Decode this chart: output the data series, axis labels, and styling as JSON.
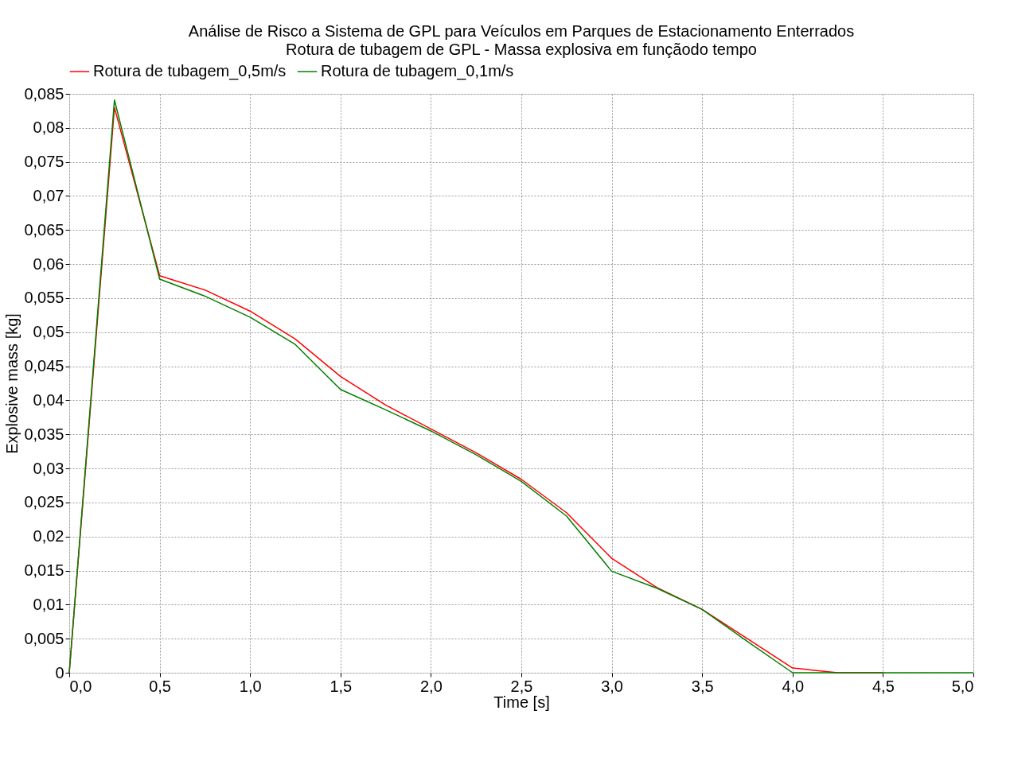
{
  "chart_data": {
    "type": "line",
    "title": "Análise de Risco a Sistema de GPL para Veículos em Parques de Estacionamento Enterrados",
    "subtitle": "Rotura de tubagem de GPL - Massa explosiva em funçãodo tempo",
    "xlabel": "Time [s]",
    "ylabel": "Explosive mass [kg]",
    "x": [
      0,
      0.25,
      0.5,
      0.75,
      1.0,
      1.25,
      1.5,
      1.75,
      2.0,
      2.25,
      2.5,
      2.75,
      3.0,
      3.25,
      3.5,
      3.75,
      4.0,
      4.25,
      4.5,
      4.75,
      5.0
    ],
    "series": [
      {
        "name": "Rotura de tubagem_0,5m/s",
        "color": "#ff0000",
        "values": [
          0,
          0.083,
          0.0583,
          0.0562,
          0.0531,
          0.049,
          0.0435,
          0.0393,
          0.0358,
          0.0323,
          0.0284,
          0.0235,
          0.0168,
          0.0125,
          0.0093,
          0.005,
          0.0007,
          0,
          0,
          null,
          null
        ]
      },
      {
        "name": "Rotura de tubagem_0,1m/s",
        "color": "#008000",
        "values": [
          0,
          0.0841,
          0.0578,
          0.0553,
          0.0522,
          0.0482,
          0.0416,
          0.0386,
          0.0355,
          0.032,
          0.0281,
          0.023,
          0.0149,
          0.0124,
          0.0093,
          0.0046,
          0,
          0,
          0,
          0,
          0
        ]
      }
    ],
    "xlim": [
      0,
      5
    ],
    "xticks": [
      {
        "value": 0,
        "label": "0,0"
      },
      {
        "value": 0.5,
        "label": "0,5"
      },
      {
        "value": 1,
        "label": "1,0"
      },
      {
        "value": 1.5,
        "label": "1,5"
      },
      {
        "value": 2,
        "label": "2,0"
      },
      {
        "value": 2.5,
        "label": "2,5"
      },
      {
        "value": 3,
        "label": "3,0"
      },
      {
        "value": 3.5,
        "label": "3,5"
      },
      {
        "value": 4,
        "label": "4,0"
      },
      {
        "value": 4.5,
        "label": "4,5"
      },
      {
        "value": 5,
        "label": "5,0"
      }
    ],
    "ylim": [
      0,
      0.085
    ],
    "yticks": [
      0,
      {
        "value": 0.005,
        "label": "0,005"
      },
      {
        "value": 0.01,
        "label": "0,01"
      },
      {
        "value": 0.015,
        "label": "0,015"
      },
      {
        "value": 0.02,
        "label": "0,02"
      },
      {
        "value": 0.025,
        "label": "0,025"
      },
      {
        "value": 0.03,
        "label": "0,03"
      },
      {
        "value": 0.035,
        "label": "0,035"
      },
      {
        "value": 0.04,
        "label": "0,04"
      },
      {
        "value": 0.045,
        "label": "0,045"
      },
      {
        "value": 0.05,
        "label": "0,05"
      },
      {
        "value": 0.055,
        "label": "0,055"
      },
      {
        "value": 0.06,
        "label": "0,06"
      },
      {
        "value": 0.065,
        "label": "0,065"
      },
      {
        "value": 0.07,
        "label": "0,07"
      },
      {
        "value": 0.075,
        "label": "0,075"
      },
      {
        "value": 0.08,
        "label": "0,08"
      },
      {
        "value": 0.085,
        "label": "0,085"
      }
    ],
    "grid": true,
    "legend": "top",
    "marker": "none",
    "line_style": "solid"
  }
}
